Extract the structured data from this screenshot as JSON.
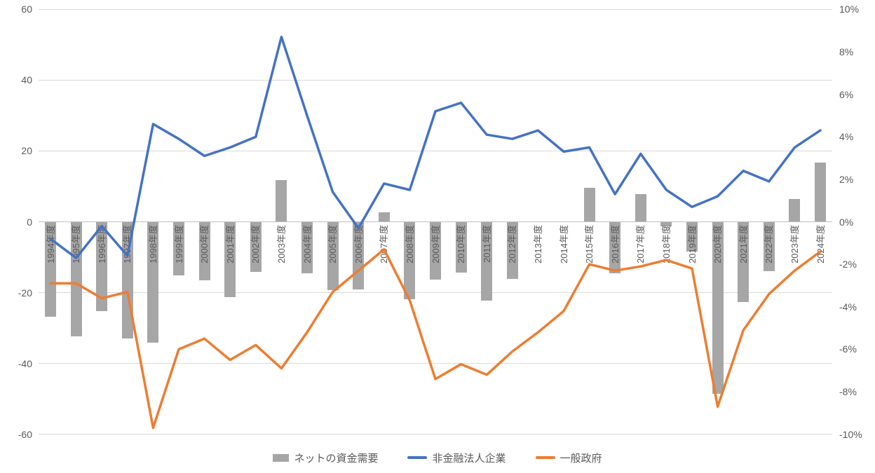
{
  "chart_data": {
    "type": "bar+line combo",
    "categories": [
      "1994年度",
      "1995年度",
      "1996年度",
      "1997年度",
      "1998年度",
      "1999年度",
      "2000年度",
      "2001年度",
      "2002年度",
      "2003年度",
      "2004年度",
      "2005年度",
      "2006年度",
      "2007年度",
      "2008年度",
      "2009年度",
      "2010年度",
      "2011年度",
      "2012年度",
      "2013年度",
      "2014年度",
      "2015年度",
      "2016年度",
      "2017年度",
      "2018年度",
      "2019年度",
      "2020年度",
      "2021年度",
      "2022年度",
      "2023年度",
      "2024年度"
    ],
    "series": [
      {
        "name": "ネットの資金需要",
        "type": "bar",
        "axis": "left",
        "color": "#a6a6a6",
        "values": [
          -26.8,
          -32.3,
          -25.3,
          -33,
          -34.2,
          -15.1,
          -16.6,
          -21.2,
          -14.1,
          11.8,
          -14.6,
          -19.3,
          -19.1,
          2.7,
          -21.8,
          -16.3,
          -14.3,
          -22.3,
          -16.1,
          0,
          0,
          9.5,
          -14.5,
          7.8,
          -1.2,
          -8.5,
          -48.6,
          -22.6,
          -14,
          6.4,
          16.8
        ]
      },
      {
        "name": "非金融法人企業",
        "type": "line",
        "axis": "right",
        "color": "#4472c4",
        "values_pct": [
          -0.8,
          -1.7,
          -0.2,
          -1.6,
          4.6,
          3.9,
          3.1,
          3.5,
          4.0,
          8.7,
          5.0,
          1.4,
          -0.3,
          1.8,
          1.5,
          5.2,
          5.6,
          4.1,
          3.9,
          4.3,
          3.3,
          3.5,
          1.3,
          3.2,
          1.5,
          0.7,
          1.2,
          2.4,
          1.9,
          3.5,
          4.3
        ]
      },
      {
        "name": "一般政府",
        "type": "line",
        "axis": "right",
        "color": "#ed7d31",
        "values_pct": [
          -2.9,
          -2.9,
          -3.6,
          -3.3,
          -9.7,
          -6.0,
          -5.5,
          -6.5,
          -5.8,
          -6.9,
          -5.2,
          -3.3,
          -2.3,
          -1.3,
          -3.7,
          -7.4,
          -6.7,
          -7.2,
          -6.1,
          -5.2,
          -4.2,
          -2.0,
          -2.3,
          -2.1,
          -1.8,
          -2.2,
          -8.7,
          -5.1,
          -3.4,
          -2.3,
          -1.4
        ]
      }
    ],
    "left_axis": {
      "ticks": [
        "60",
        "40",
        "20",
        "0",
        "-20",
        "-40",
        "-60"
      ],
      "min": -60,
      "max": 60
    },
    "right_axis": {
      "ticks": [
        "10%",
        "8%",
        "6%",
        "4%",
        "2%",
        "0%",
        "-2%",
        "-4%",
        "-6%",
        "-8%",
        "-10%"
      ],
      "min": -10,
      "max": 10
    },
    "legend": [
      "ネットの資金需要",
      "非金融法人企業",
      "一般政府"
    ],
    "grid": "horizontal",
    "legend_position": "bottom",
    "colors": {
      "bar": "#a6a6a6",
      "line1": "#4472c4",
      "line2": "#ed7d31",
      "axis_text": "#595959",
      "gridline": "#d9d9d9"
    }
  }
}
